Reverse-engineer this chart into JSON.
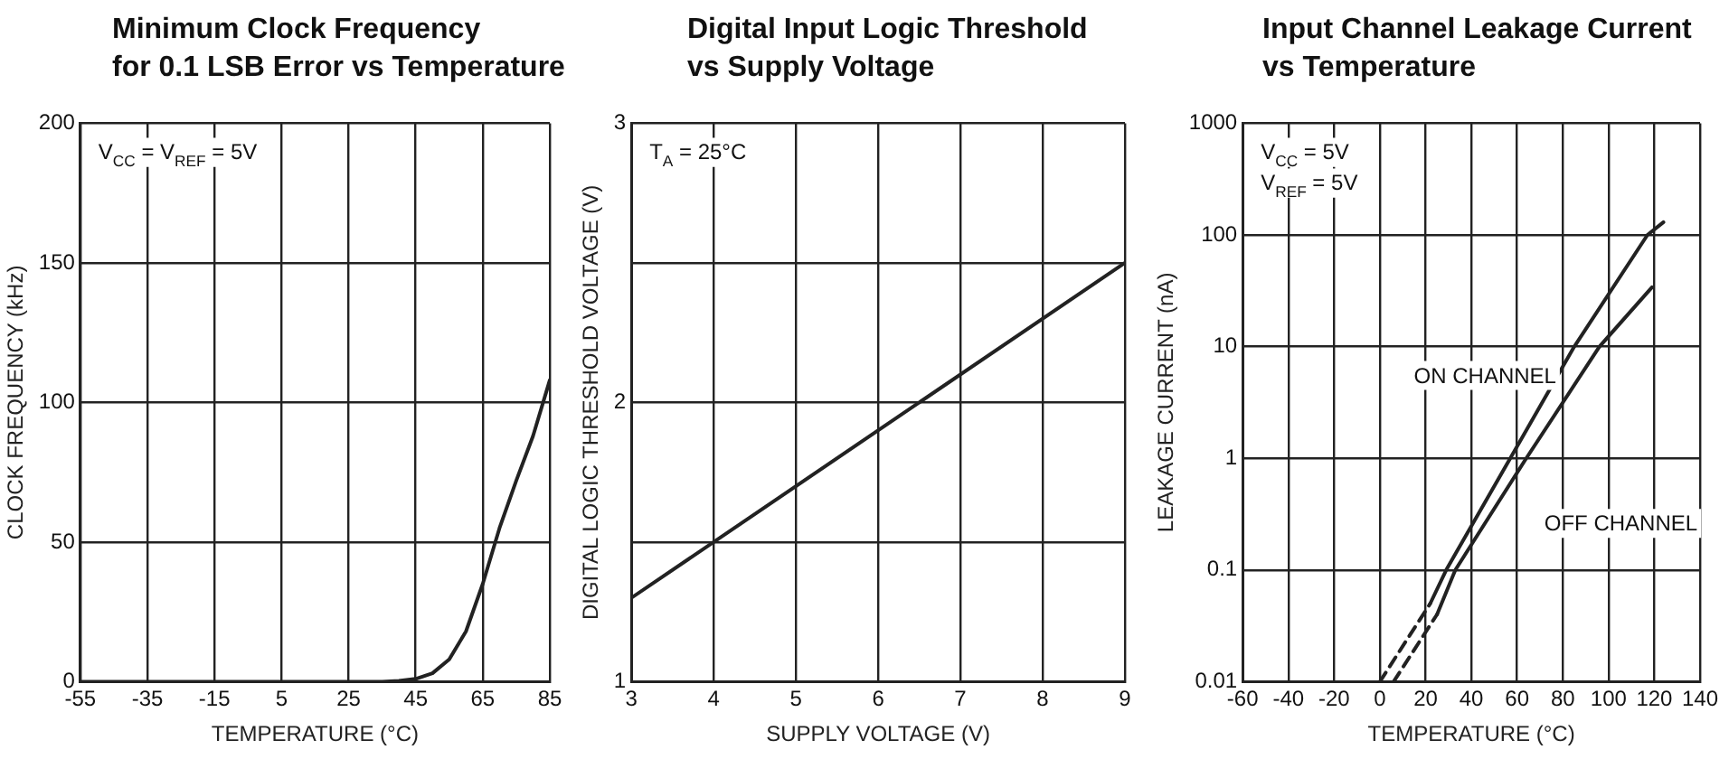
{
  "chart_data": [
    {
      "type": "line",
      "title": "Minimum Clock Frequency\nfor 0.1 LSB Error vs Temperature",
      "xlabel": "TEMPERATURE (°C)",
      "ylabel": "CLOCK FREQUENCY (kHz)",
      "annotations": [
        "V$_{CC}$ = V$_{REF}$ = 5V"
      ],
      "x": [
        -55,
        35,
        40,
        45,
        50,
        55,
        60,
        65,
        70,
        75,
        80,
        85
      ],
      "series": [
        {
          "color": "#222222",
          "values": [
            0,
            0,
            0.3,
            1,
            3,
            8,
            18,
            35,
            55,
            72,
            88,
            108
          ]
        }
      ],
      "xlim": [
        -55,
        85
      ],
      "xticks": [
        -55,
        -35,
        -15,
        5,
        25,
        45,
        65,
        85
      ],
      "ylim": [
        0,
        200
      ],
      "yticks": [
        0,
        50,
        100,
        150,
        200
      ],
      "grid": true,
      "legend": false
    },
    {
      "type": "line",
      "title": "Digital Input Logic Threshold\nvs Supply Voltage",
      "xlabel": "SUPPLY VOLTAGE (V)",
      "ylabel": "DIGITAL LOGIC THRESHOLD VOLTAGE (V)",
      "annotations": [
        "T$_{A}$ = 25°C"
      ],
      "x": [
        3,
        9
      ],
      "series": [
        {
          "color": "#222222",
          "values": [
            1.3,
            2.5
          ]
        }
      ],
      "xlim": [
        3,
        9
      ],
      "xticks": [
        3,
        4,
        5,
        6,
        7,
        8,
        9
      ],
      "ylim": [
        1,
        3
      ],
      "yticks": [
        1,
        {
          "value": 1.5,
          "label": null
        },
        2,
        {
          "value": 2.5,
          "label": null
        },
        3
      ],
      "grid": true,
      "legend": false
    },
    {
      "type": "line",
      "title": "Input Channel Leakage Current\nvs Temperature",
      "xlabel": "TEMPERATURE (°C)",
      "ylabel": "LEAKAGE CURRENT (nA)",
      "annotations": [
        "V$_{CC}$ = 5V",
        "V$_{REF}$ = 5V"
      ],
      "series": [
        {
          "name": "ON CHANNEL",
          "color": "#222222",
          "x": [
            22,
            29,
            57,
            85,
            117,
            124
          ],
          "values": [
            0.05,
            0.1,
            1,
            10,
            100,
            130
          ]
        },
        {
          "color": "#222222",
          "line_style": "dashed",
          "x": [
            0,
            22
          ],
          "values": [
            0.01,
            0.05
          ]
        },
        {
          "name": "OFF CHANNEL",
          "color": "#222222",
          "x": [
            25,
            33,
            64,
            96,
            119
          ],
          "values": [
            0.04,
            0.1,
            1,
            10,
            34
          ]
        },
        {
          "color": "#222222",
          "line_style": "dashed",
          "x": [
            6,
            25
          ],
          "values": [
            0.01,
            0.04
          ]
        }
      ],
      "log": "y",
      "xlim": [
        -60,
        140
      ],
      "xticks": [
        -60,
        -40,
        -20,
        0,
        20,
        40,
        60,
        80,
        100,
        120,
        140
      ],
      "ylim": [
        0.01,
        1000
      ],
      "yticks": [
        0.01,
        0.1,
        1,
        10,
        100,
        1000
      ],
      "grid": true,
      "legend": false
    }
  ]
}
